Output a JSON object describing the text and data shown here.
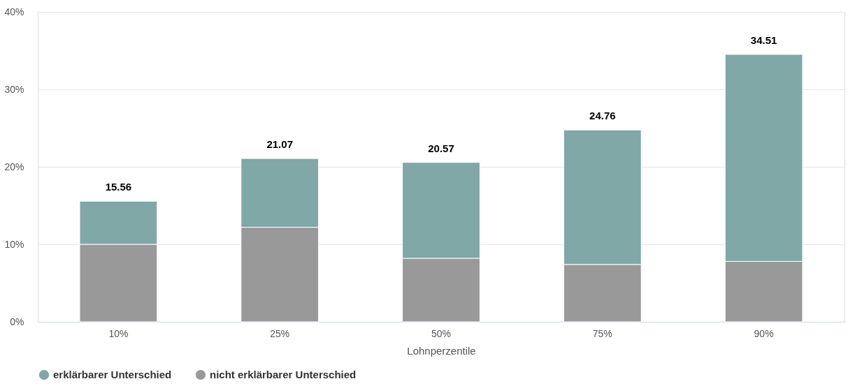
{
  "chart_data": {
    "type": "bar",
    "stacked": true,
    "xlabel": "Lohnperzentile",
    "categories": [
      "10%",
      "25%",
      "50%",
      "75%",
      "90%"
    ],
    "series": [
      {
        "name": "nicht erklärbarer Unterschied",
        "color": "#999999",
        "values": [
          10.0,
          12.2,
          8.2,
          7.4,
          7.8
        ]
      },
      {
        "name": "erklärbarer Unterschied",
        "color": "#7fa8a7",
        "values": [
          5.56,
          8.87,
          12.37,
          17.36,
          26.71
        ]
      }
    ],
    "totals": [
      "15.56",
      "21.07",
      "20.57",
      "24.76",
      "34.51"
    ],
    "ylim": [
      0,
      40
    ],
    "yticks": [
      {
        "value": 0,
        "label": "0%"
      },
      {
        "value": 10,
        "label": "10%"
      },
      {
        "value": 20,
        "label": "20%"
      },
      {
        "value": 30,
        "label": "30%"
      },
      {
        "value": 40,
        "label": "40%"
      }
    ],
    "grid": "y",
    "legend": "bottom"
  }
}
